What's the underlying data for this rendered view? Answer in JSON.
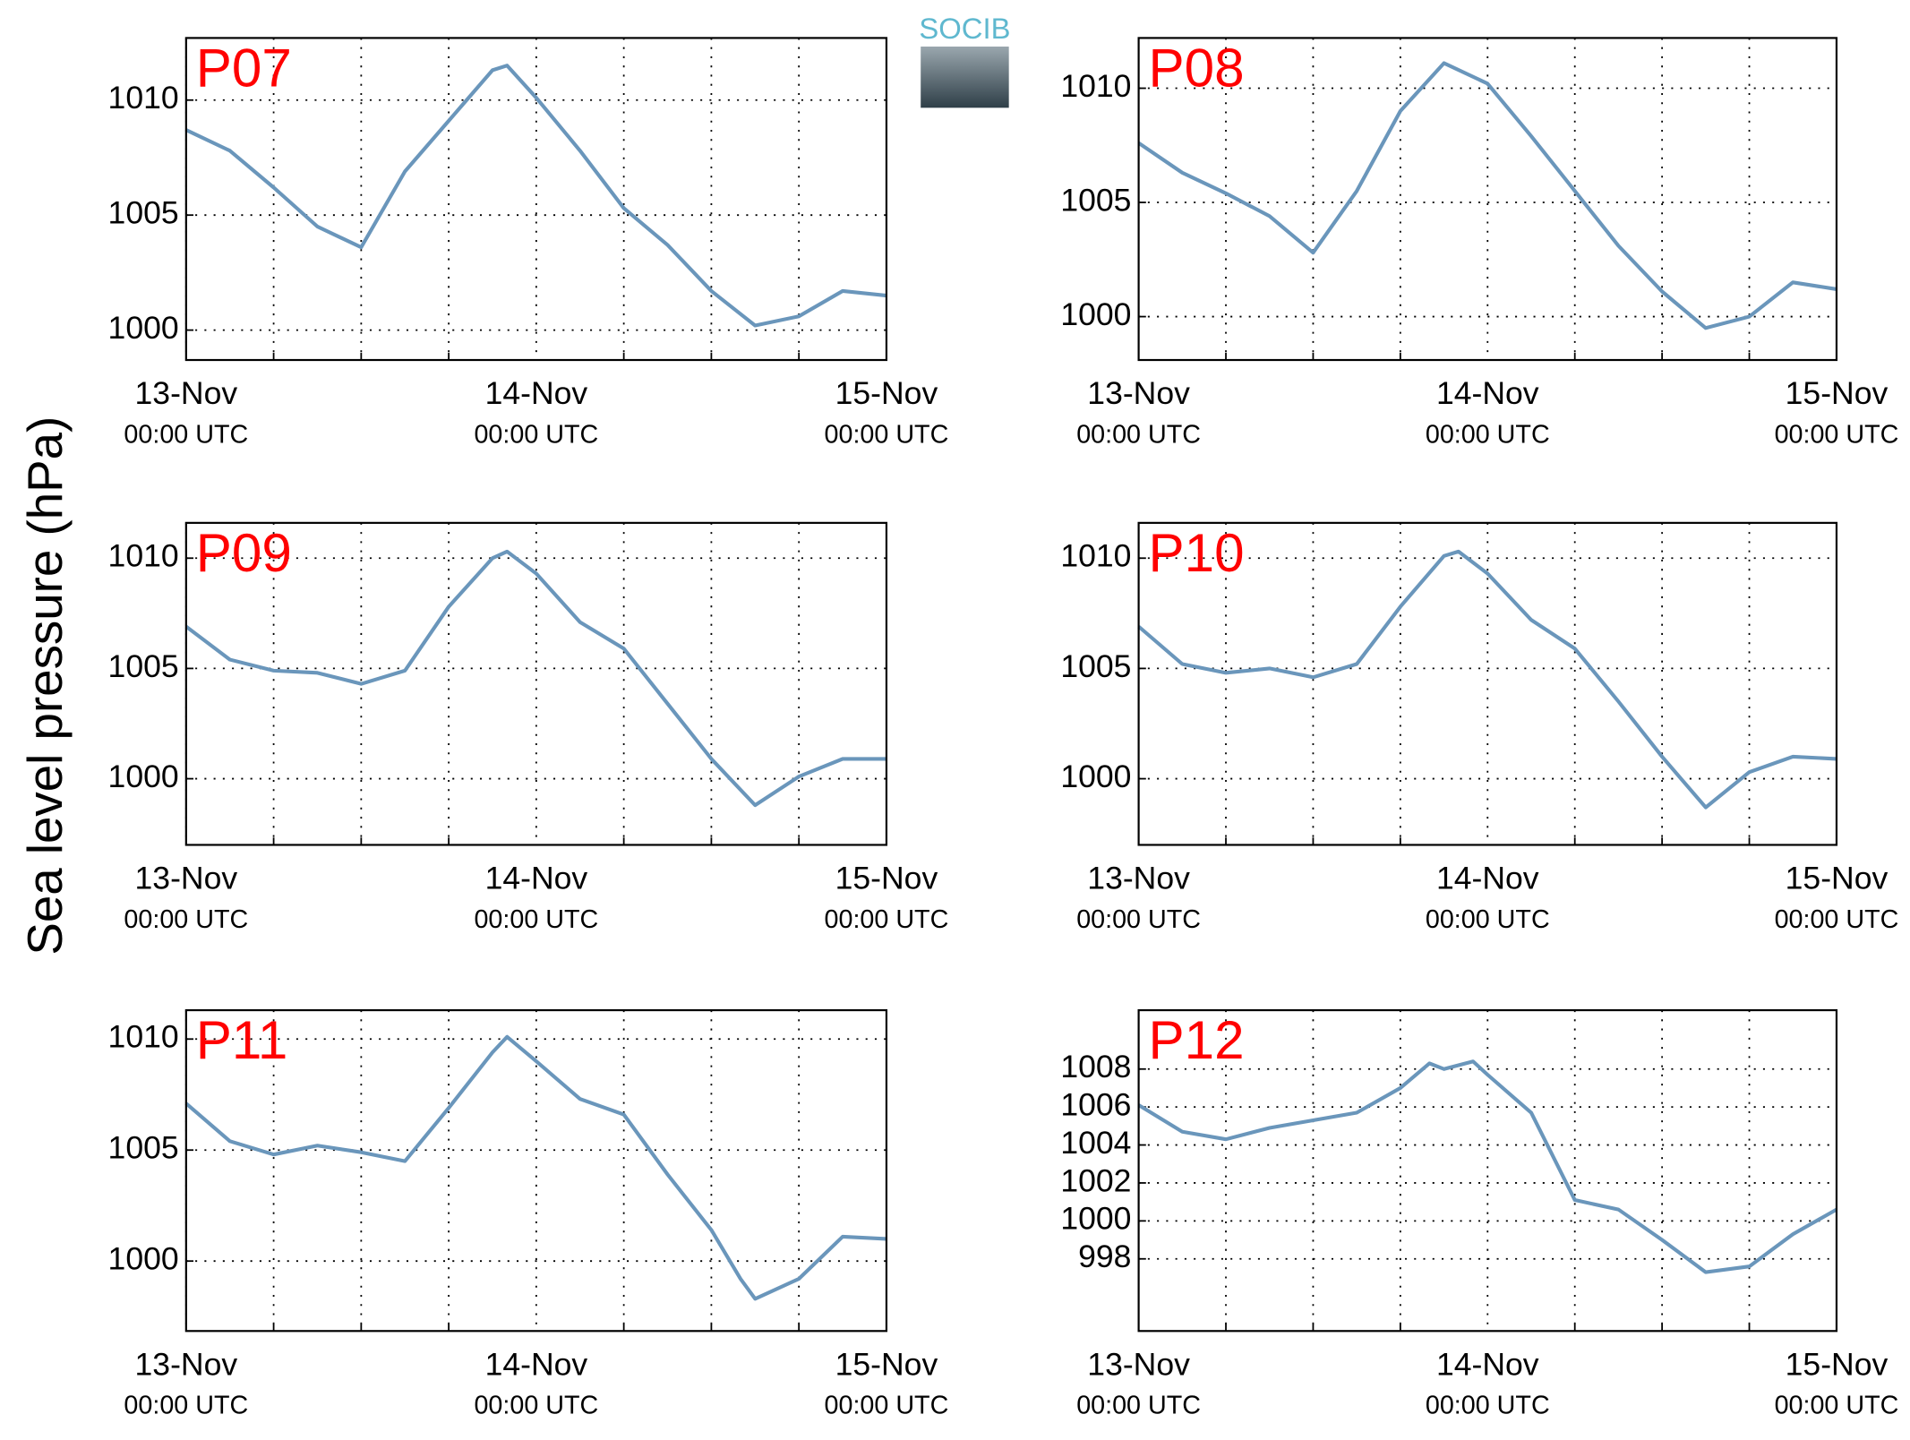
{
  "ylabel": "Sea level pressure (hPa)",
  "logo": "SOCIB",
  "chart_data": [
    {
      "type": "line",
      "title": "P07",
      "x": [
        0,
        3,
        6,
        9,
        12,
        15,
        18,
        21,
        22,
        24,
        27,
        30,
        33,
        36,
        39,
        42,
        45,
        48
      ],
      "series": [
        {
          "color": "#6a96bb",
          "values": [
            1008.7,
            1007.8,
            1006.2,
            1004.5,
            1003.6,
            1006.9,
            1009.1,
            1011.3,
            1011.5,
            1010.1,
            1007.8,
            1005.3,
            1003.7,
            1001.7,
            1000.2,
            1000.6,
            1001.7,
            1001.5
          ]
        }
      ],
      "xlim": [
        0,
        48
      ],
      "xticks": [
        {
          "value": 0,
          "label": "13-Nov",
          "sublabel": "00:00 UTC"
        },
        {
          "value": 24,
          "label": "14-Nov",
          "sublabel": "00:00 UTC"
        },
        {
          "value": 48,
          "label": "15-Nov",
          "sublabel": "00:00 UTC"
        }
      ],
      "xminorticks": [
        6,
        12,
        18,
        30,
        36,
        42
      ],
      "ylim": [
        998.7,
        1012.7
      ],
      "yticks": [
        1000,
        1005,
        1010
      ],
      "grid": true
    },
    {
      "type": "line",
      "title": "P08",
      "x": [
        0,
        3,
        6,
        9,
        12,
        15,
        18,
        21,
        24,
        27,
        30,
        33,
        36,
        39,
        42,
        45,
        48
      ],
      "series": [
        {
          "color": "#6a96bb",
          "values": [
            1007.6,
            1006.3,
            1005.4,
            1004.4,
            1002.8,
            1005.5,
            1009.0,
            1011.1,
            1010.2,
            1007.9,
            1005.5,
            1003.1,
            1001.1,
            999.5,
            1000.0,
            1001.5,
            1001.2
          ]
        }
      ],
      "xlim": [
        0,
        48
      ],
      "xticks": [
        {
          "value": 0,
          "label": "13-Nov",
          "sublabel": "00:00 UTC"
        },
        {
          "value": 24,
          "label": "14-Nov",
          "sublabel": "00:00 UTC"
        },
        {
          "value": 48,
          "label": "15-Nov",
          "sublabel": "00:00 UTC"
        }
      ],
      "xminorticks": [
        6,
        12,
        18,
        30,
        36,
        42
      ],
      "ylim": [
        998.1,
        1012.2
      ],
      "yticks": [
        1000,
        1005,
        1010
      ],
      "grid": true
    },
    {
      "type": "line",
      "title": "P09",
      "x": [
        0,
        3,
        6,
        9,
        12,
        15,
        18,
        21,
        22,
        24,
        27,
        30,
        33,
        36,
        39,
        42,
        45,
        48
      ],
      "series": [
        {
          "color": "#6a96bb",
          "values": [
            1006.9,
            1005.4,
            1004.9,
            1004.8,
            1004.3,
            1004.9,
            1007.8,
            1010.0,
            1010.3,
            1009.3,
            1007.1,
            1005.9,
            1003.4,
            1000.9,
            998.8,
            1000.1,
            1000.9,
            1000.9
          ]
        }
      ],
      "xlim": [
        0,
        48
      ],
      "xticks": [
        {
          "value": 0,
          "label": "13-Nov",
          "sublabel": "00:00 UTC"
        },
        {
          "value": 24,
          "label": "14-Nov",
          "sublabel": "00:00 UTC"
        },
        {
          "value": 48,
          "label": "15-Nov",
          "sublabel": "00:00 UTC"
        }
      ],
      "xminorticks": [
        6,
        12,
        18,
        30,
        36,
        42
      ],
      "ylim": [
        997.0,
        1011.6
      ],
      "yticks": [
        1000,
        1005,
        1010
      ],
      "grid": true
    },
    {
      "type": "line",
      "title": "P10",
      "x": [
        0,
        3,
        6,
        9,
        12,
        15,
        18,
        21,
        22,
        24,
        27,
        30,
        33,
        36,
        39,
        42,
        45,
        48
      ],
      "series": [
        {
          "color": "#6a96bb",
          "values": [
            1006.9,
            1005.2,
            1004.8,
            1005.0,
            1004.6,
            1005.2,
            1007.8,
            1010.1,
            1010.3,
            1009.3,
            1007.2,
            1005.9,
            1003.5,
            1001.0,
            998.7,
            1000.3,
            1001.0,
            1000.9
          ]
        }
      ],
      "xlim": [
        0,
        48
      ],
      "xticks": [
        {
          "value": 0,
          "label": "13-Nov",
          "sublabel": "00:00 UTC"
        },
        {
          "value": 24,
          "label": "14-Nov",
          "sublabel": "00:00 UTC"
        },
        {
          "value": 48,
          "label": "15-Nov",
          "sublabel": "00:00 UTC"
        }
      ],
      "xminorticks": [
        6,
        12,
        18,
        30,
        36,
        42
      ],
      "ylim": [
        997.0,
        1011.6
      ],
      "yticks": [
        1000,
        1005,
        1010
      ],
      "grid": true
    },
    {
      "type": "line",
      "title": "P11",
      "x": [
        0,
        3,
        6,
        9,
        12,
        15,
        18,
        21,
        22,
        24,
        27,
        30,
        33,
        36,
        38,
        39,
        42,
        45,
        48
      ],
      "series": [
        {
          "color": "#6a96bb",
          "values": [
            1007.1,
            1005.4,
            1004.8,
            1005.2,
            1004.9,
            1004.5,
            1006.9,
            1009.4,
            1010.1,
            1009.0,
            1007.3,
            1006.6,
            1003.9,
            1001.4,
            999.2,
            998.3,
            999.2,
            1001.1,
            1001.0
          ]
        }
      ],
      "xlim": [
        0,
        48
      ],
      "xticks": [
        {
          "value": 0,
          "label": "13-Nov",
          "sublabel": "00:00 UTC"
        },
        {
          "value": 24,
          "label": "14-Nov",
          "sublabel": "00:00 UTC"
        },
        {
          "value": 48,
          "label": "15-Nov",
          "sublabel": "00:00 UTC"
        }
      ],
      "xminorticks": [
        6,
        12,
        18,
        30,
        36,
        42
      ],
      "ylim": [
        996.85,
        1011.3
      ],
      "yticks": [
        1000,
        1005,
        1010
      ],
      "grid": true
    },
    {
      "type": "line",
      "title": "P12",
      "x": [
        0,
        3,
        6,
        9,
        12,
        15,
        18,
        20,
        21,
        23,
        24,
        27,
        30,
        33,
        36,
        39,
        42,
        45,
        48
      ],
      "series": [
        {
          "color": "#6a96bb",
          "values": [
            1006.1,
            1004.7,
            1004.3,
            1004.9,
            1005.3,
            1005.7,
            1007.0,
            1008.3,
            1008.0,
            1008.4,
            1007.7,
            1005.7,
            1001.1,
            1000.6,
            999.0,
            997.3,
            997.6,
            999.3,
            1000.6
          ]
        }
      ],
      "xlim": [
        0,
        48
      ],
      "xticks": [
        {
          "value": 0,
          "label": "13-Nov",
          "sublabel": "00:00 UTC"
        },
        {
          "value": 24,
          "label": "14-Nov",
          "sublabel": "00:00 UTC"
        },
        {
          "value": 48,
          "label": "15-Nov",
          "sublabel": "00:00 UTC"
        }
      ],
      "xminorticks": [
        6,
        12,
        18,
        30,
        36,
        42
      ],
      "ylim": [
        994.2,
        1011.1
      ],
      "yticks": [
        998,
        1000,
        1002,
        1004,
        1006,
        1008
      ],
      "grid": true
    }
  ]
}
